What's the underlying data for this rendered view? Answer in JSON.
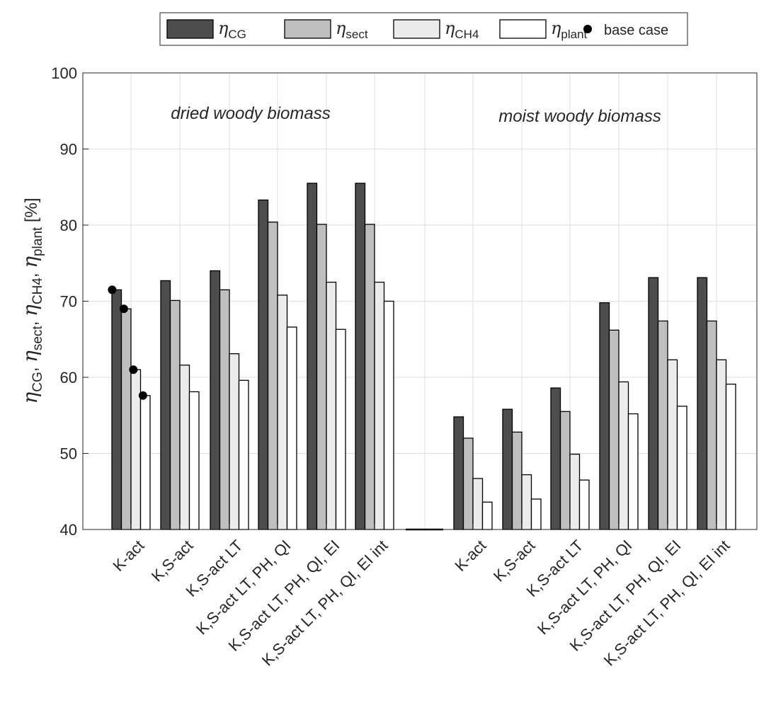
{
  "chart_data": {
    "type": "bar",
    "ylabel_unit": "[%]",
    "ylim": [
      40,
      100
    ],
    "yticks": [
      40,
      50,
      60,
      70,
      80,
      90,
      100
    ],
    "grid": true,
    "legend_position": "top",
    "legend": {
      "series_symbols": [
        "η",
        "η",
        "η",
        "η"
      ],
      "series_subscripts": [
        "CG",
        "sect",
        "CH4",
        "plant"
      ],
      "marker_label": "base case"
    },
    "colors": [
      "#4d4d4d",
      "#bfbfbf",
      "#ececec",
      "#ffffff"
    ],
    "groups": [
      {
        "label": "dried woody biomass",
        "categories": [
          "K-act",
          "K,S-act",
          "K,S-act LT",
          "K,S-act LT, PH, QI",
          "K,S-act LT, PH, QI, EI",
          "K,S-act LT, PH, QI, EI int"
        ],
        "series": [
          {
            "values": [
              71.5,
              72.7,
              74.0,
              83.3,
              85.5,
              85.5
            ]
          },
          {
            "values": [
              69.0,
              70.1,
              71.5,
              80.4,
              80.1,
              80.1
            ]
          },
          {
            "values": [
              61.0,
              61.6,
              63.1,
              70.8,
              72.5,
              72.5
            ]
          },
          {
            "values": [
              57.6,
              58.1,
              59.6,
              66.6,
              66.3,
              70.0
            ]
          }
        ]
      },
      {
        "label": "moist woody biomass",
        "categories": [
          "K-act",
          "K,S-act",
          "K,S-act LT",
          "K,S-act LT, PH, QI",
          "K,S-act LT, PH, QI, EI",
          "K,S-act LT, PH, QI, EI int"
        ],
        "series": [
          {
            "values": [
              54.8,
              55.8,
              58.6,
              69.8,
              73.1,
              73.1
            ]
          },
          {
            "values": [
              52.0,
              52.8,
              55.5,
              66.2,
              67.4,
              67.4
            ]
          },
          {
            "values": [
              46.7,
              47.2,
              49.9,
              59.4,
              62.3,
              62.3
            ]
          },
          {
            "values": [
              43.6,
              44.0,
              46.5,
              55.2,
              56.2,
              59.1
            ]
          }
        ]
      }
    ],
    "base_case_markers": {
      "group": 0,
      "category": 0,
      "values": [
        71.5,
        69.0,
        61.0,
        57.6
      ]
    }
  }
}
